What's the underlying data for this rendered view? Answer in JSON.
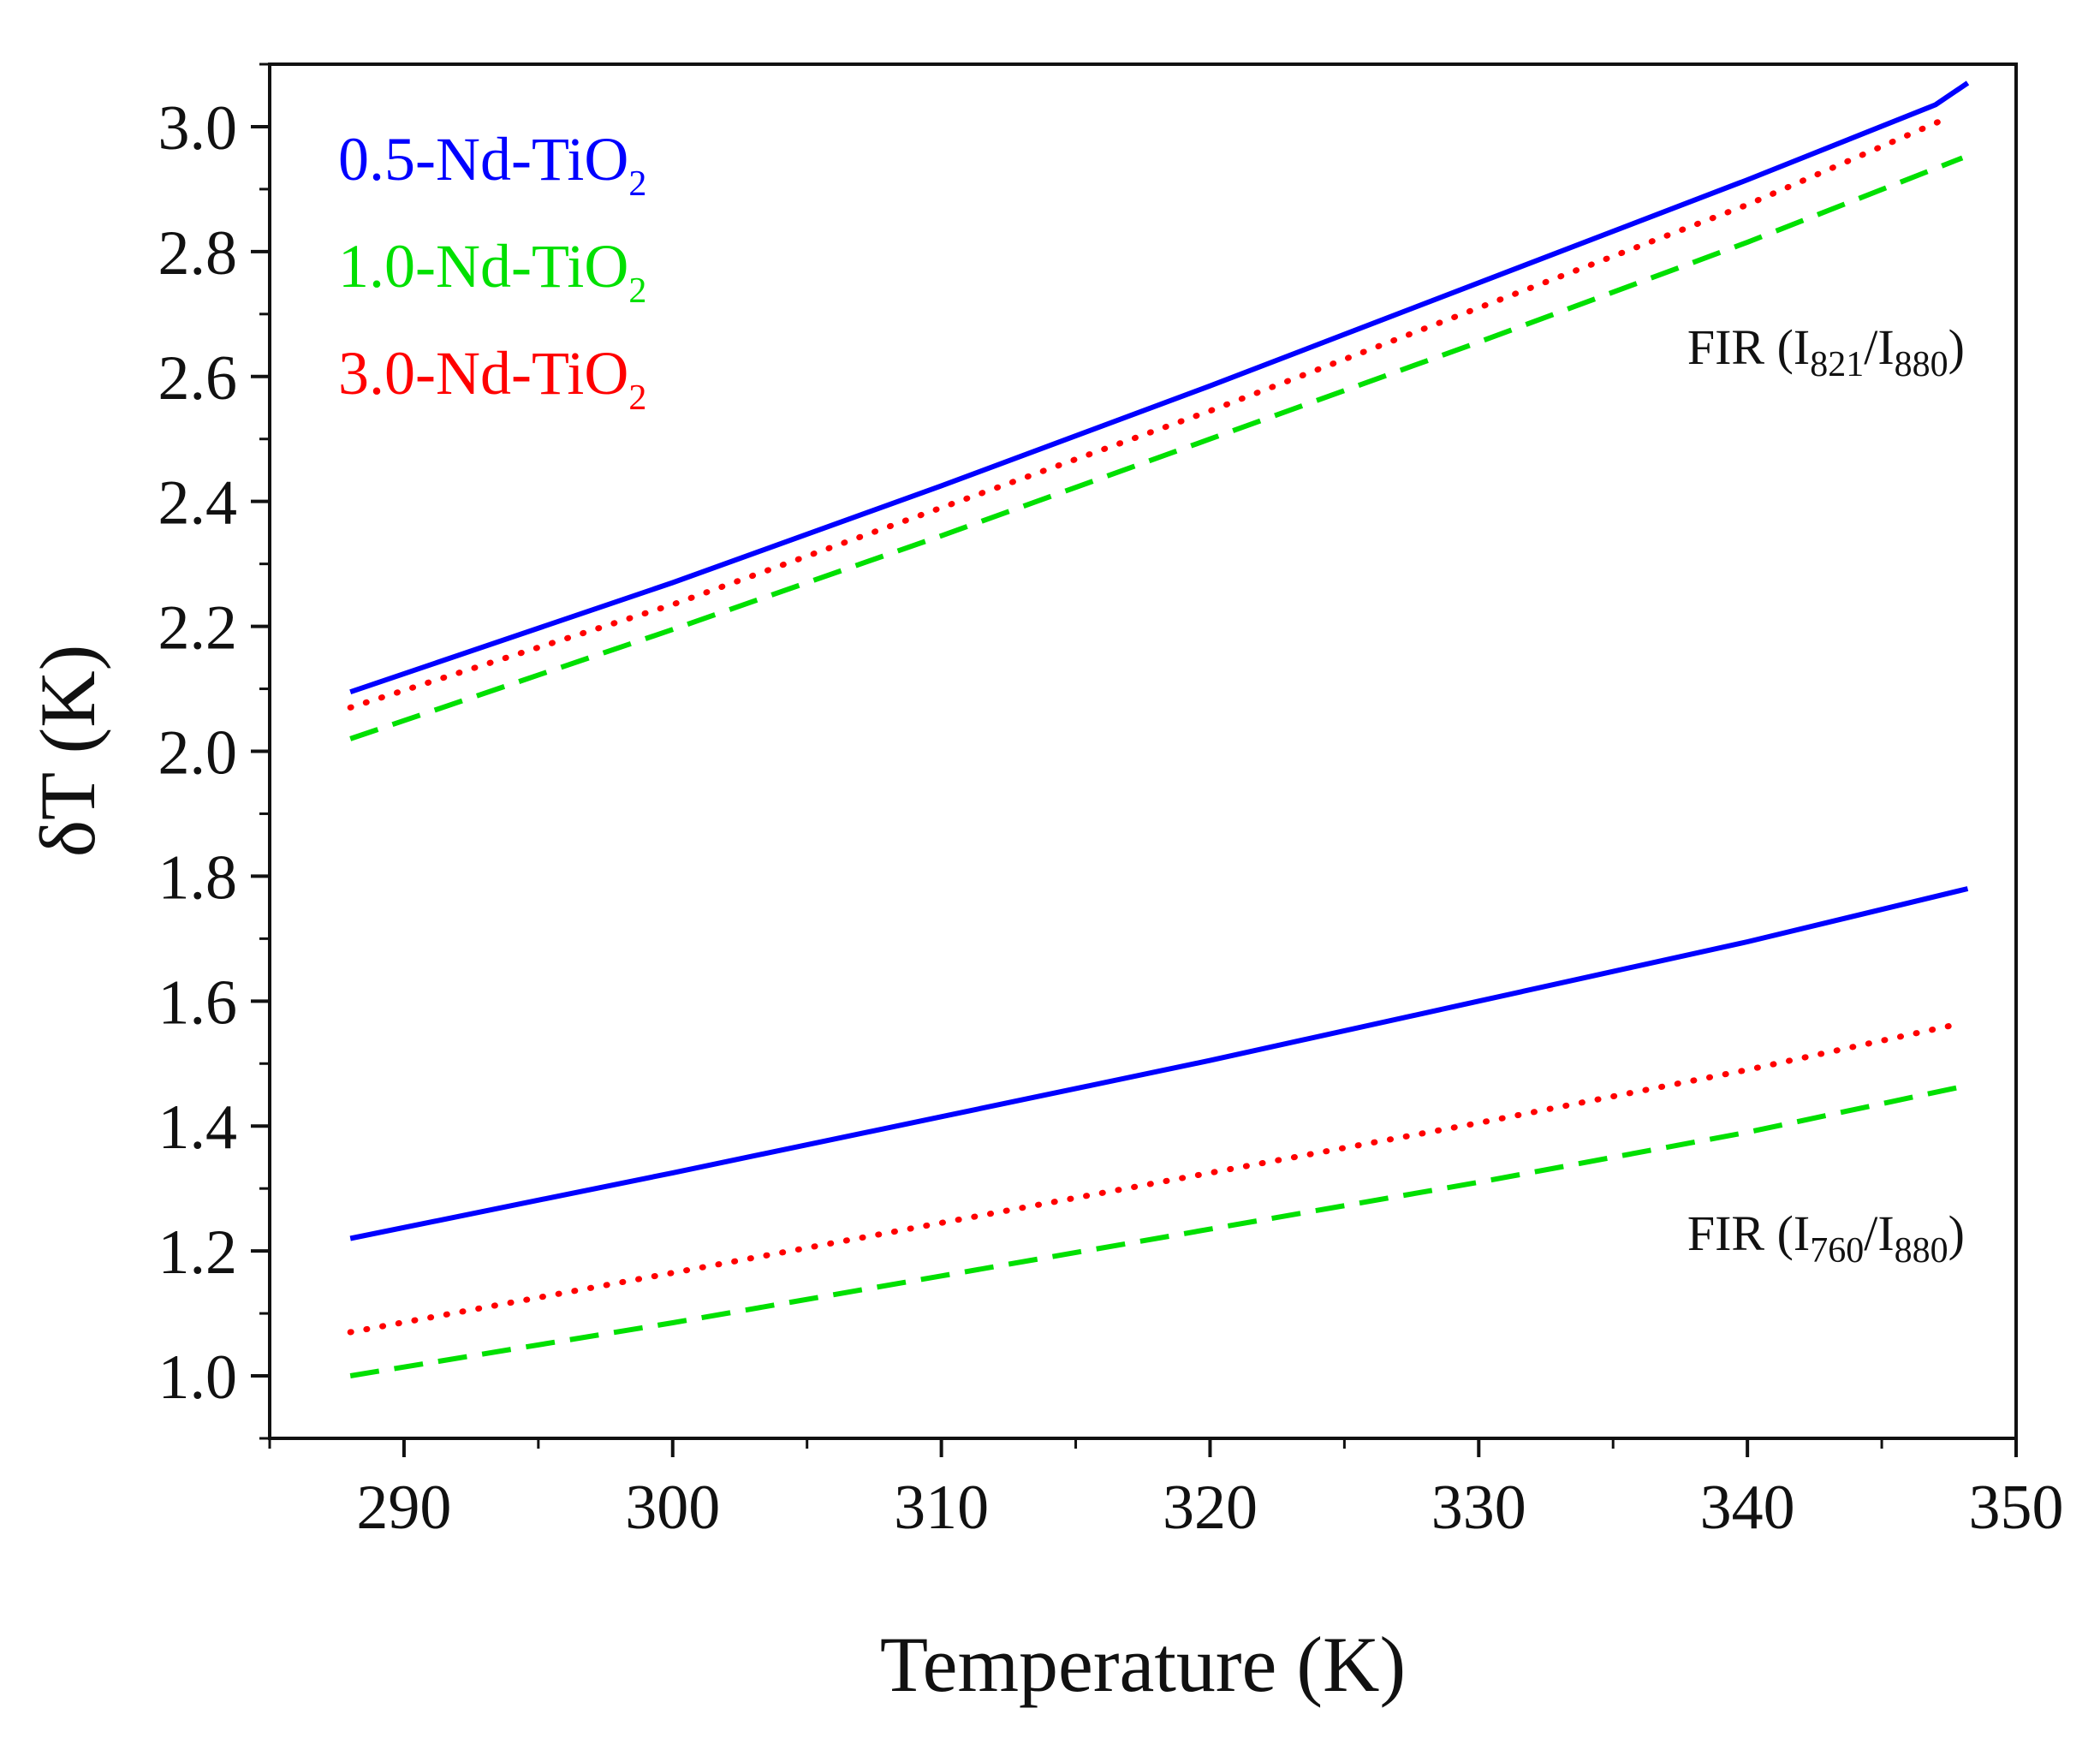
{
  "chart_data": {
    "type": "line",
    "title": "",
    "xlabel": "Temperature (K)",
    "ylabel": "δT (K)",
    "xlim": [
      285,
      350
    ],
    "ylim": [
      0.9,
      3.1
    ],
    "x_ticks": [
      290,
      300,
      310,
      320,
      330,
      340,
      350
    ],
    "y_ticks": [
      1.0,
      1.2,
      1.4,
      1.6,
      1.8,
      2.0,
      2.2,
      2.4,
      2.6,
      2.8,
      3.0
    ],
    "x_tick_labels": [
      "290",
      "300",
      "310",
      "320",
      "330",
      "340",
      "350"
    ],
    "y_tick_labels": [
      "1.0",
      "1.2",
      "1.4",
      "1.6",
      "1.8",
      "2.0",
      "2.2",
      "2.4",
      "2.6",
      "2.8",
      "3.0"
    ],
    "grid": false,
    "legend_position": "top-left",
    "legend": [
      {
        "name": "0.5-Nd-TiO",
        "subscript": "2",
        "color": "#0000ff",
        "style": "solid"
      },
      {
        "name": "1.0-Nd-TiO",
        "subscript": "2",
        "color": "#00e000",
        "style": "dashed"
      },
      {
        "name": "3.0-Nd-TiO",
        "subscript": "2",
        "color": "#ff0000",
        "style": "dotted"
      }
    ],
    "annotations": [
      {
        "group": "upper",
        "text_main": "FIR (I",
        "sub1": "821",
        "mid": "/I",
        "sub2": "880",
        "tail": ")"
      },
      {
        "group": "lower",
        "text_main": "FIR (I",
        "sub1": "760",
        "mid": "/I",
        "sub2": "880",
        "tail": ")"
      }
    ],
    "series": [
      {
        "name": "0.5-Nd-TiO2 FIR(I821/I880)",
        "group": "upper",
        "color": "#0000ff",
        "style": "solid",
        "x": [
          288,
          300,
          310,
          320,
          330,
          340,
          347,
          348.2
        ],
        "y": [
          2.095,
          2.27,
          2.425,
          2.585,
          2.75,
          2.915,
          3.035,
          3.07
        ]
      },
      {
        "name": "3.0-Nd-TiO2 FIR(I821/I880)",
        "group": "upper",
        "color": "#ff0000",
        "style": "dotted",
        "x": [
          288,
          300,
          310,
          320,
          330,
          340,
          347.5
        ],
        "y": [
          2.07,
          2.235,
          2.39,
          2.545,
          2.71,
          2.875,
          3.015
        ]
      },
      {
        "name": "1.0-Nd-TiO2 FIR(I821/I880)",
        "group": "upper",
        "color": "#00e000",
        "style": "dashed",
        "x": [
          288,
          300,
          310,
          320,
          330,
          340,
          348
        ],
        "y": [
          2.02,
          2.195,
          2.345,
          2.5,
          2.655,
          2.815,
          2.95
        ]
      },
      {
        "name": "0.5-Nd-TiO2 FIR(I760/I880)",
        "group": "lower",
        "color": "#0000ff",
        "style": "solid",
        "x": [
          288,
          300,
          310,
          320,
          330,
          340,
          348.2
        ],
        "y": [
          1.22,
          1.325,
          1.415,
          1.505,
          1.6,
          1.695,
          1.78
        ]
      },
      {
        "name": "3.0-Nd-TiO2 FIR(I760/I880)",
        "group": "lower",
        "color": "#ff0000",
        "style": "dotted",
        "x": [
          288,
          300,
          310,
          320,
          330,
          340,
          347.5
        ],
        "y": [
          1.07,
          1.165,
          1.245,
          1.325,
          1.405,
          1.49,
          1.56
        ]
      },
      {
        "name": "1.0-Nd-TiO2 FIR(I760/I880)",
        "group": "lower",
        "color": "#00e000",
        "style": "dashed",
        "x": [
          288,
          300,
          310,
          320,
          330,
          340,
          348.2
        ],
        "y": [
          1.0,
          1.085,
          1.16,
          1.235,
          1.31,
          1.39,
          1.465
        ]
      }
    ]
  }
}
